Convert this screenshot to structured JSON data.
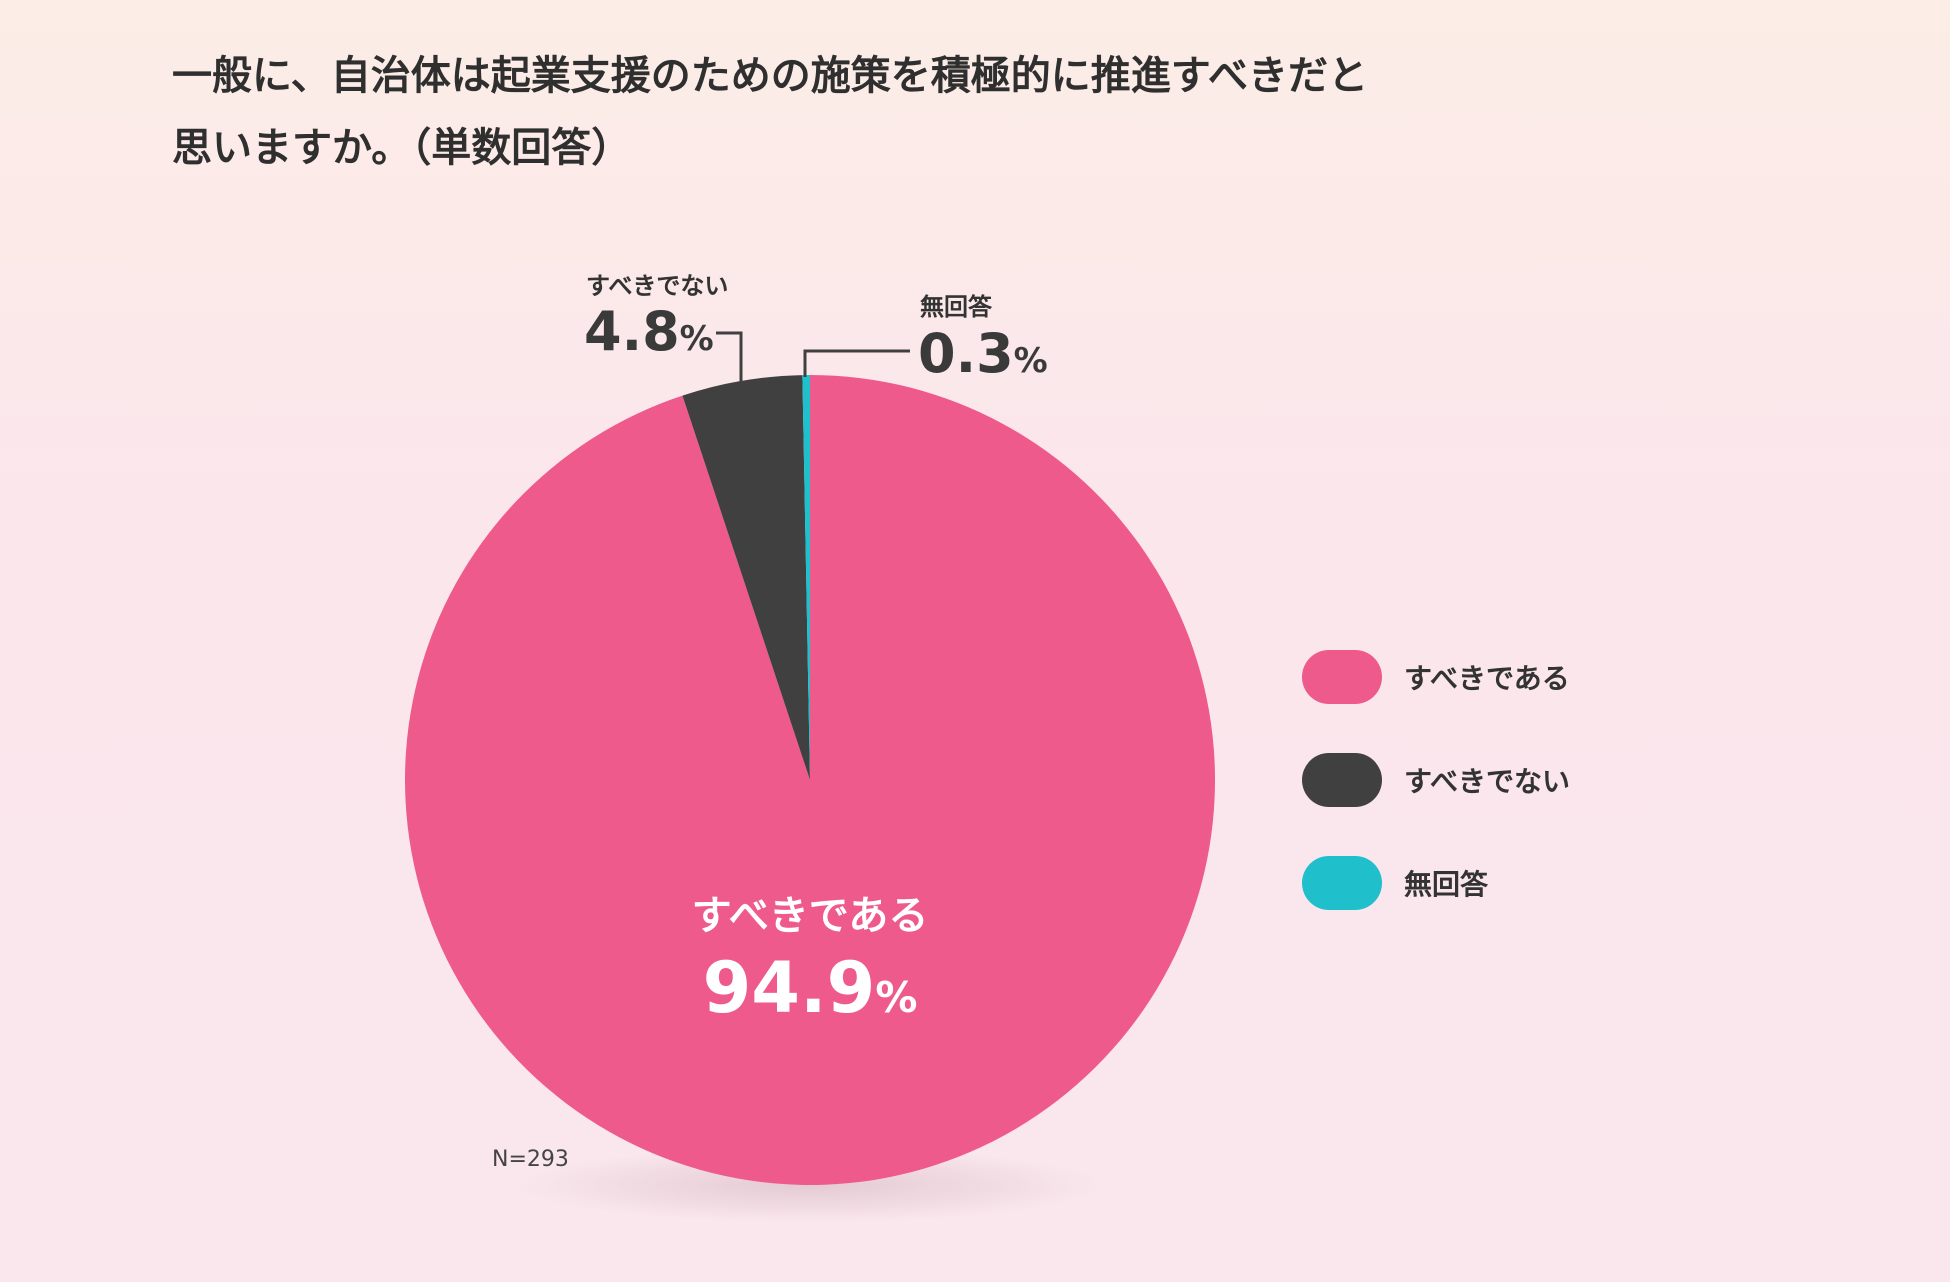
{
  "title": {
    "line1": "一般に、自治体は起業支援のための施策を積極的に推進すべきだと",
    "line2": "思いますか。（単数回答）"
  },
  "colors": {
    "should": "#ef5a8d",
    "should_not": "#404040",
    "no_answer": "#1fbfcc"
  },
  "chart_data": {
    "type": "pie",
    "title": "一般に、自治体は起業支援のための施策を積極的に推進すべきだと思いますか。（単数回答）",
    "slices": [
      {
        "label": "すべきである",
        "value": 94.9,
        "display": "94.9",
        "color": "#ef5a8d"
      },
      {
        "label": "すべきでない",
        "value": 4.8,
        "display": "4.8",
        "color": "#404040"
      },
      {
        "label": "無回答",
        "value": 0.3,
        "display": "0.3",
        "color": "#1fbfcc"
      }
    ],
    "unit": "%",
    "legend_position": "right",
    "note": "N=293"
  },
  "legend": {
    "items": [
      {
        "label": "すべきである",
        "color": "#ef5a8d"
      },
      {
        "label": "すべきでない",
        "color": "#404040"
      },
      {
        "label": "無回答",
        "color": "#1fbfcc"
      }
    ]
  }
}
